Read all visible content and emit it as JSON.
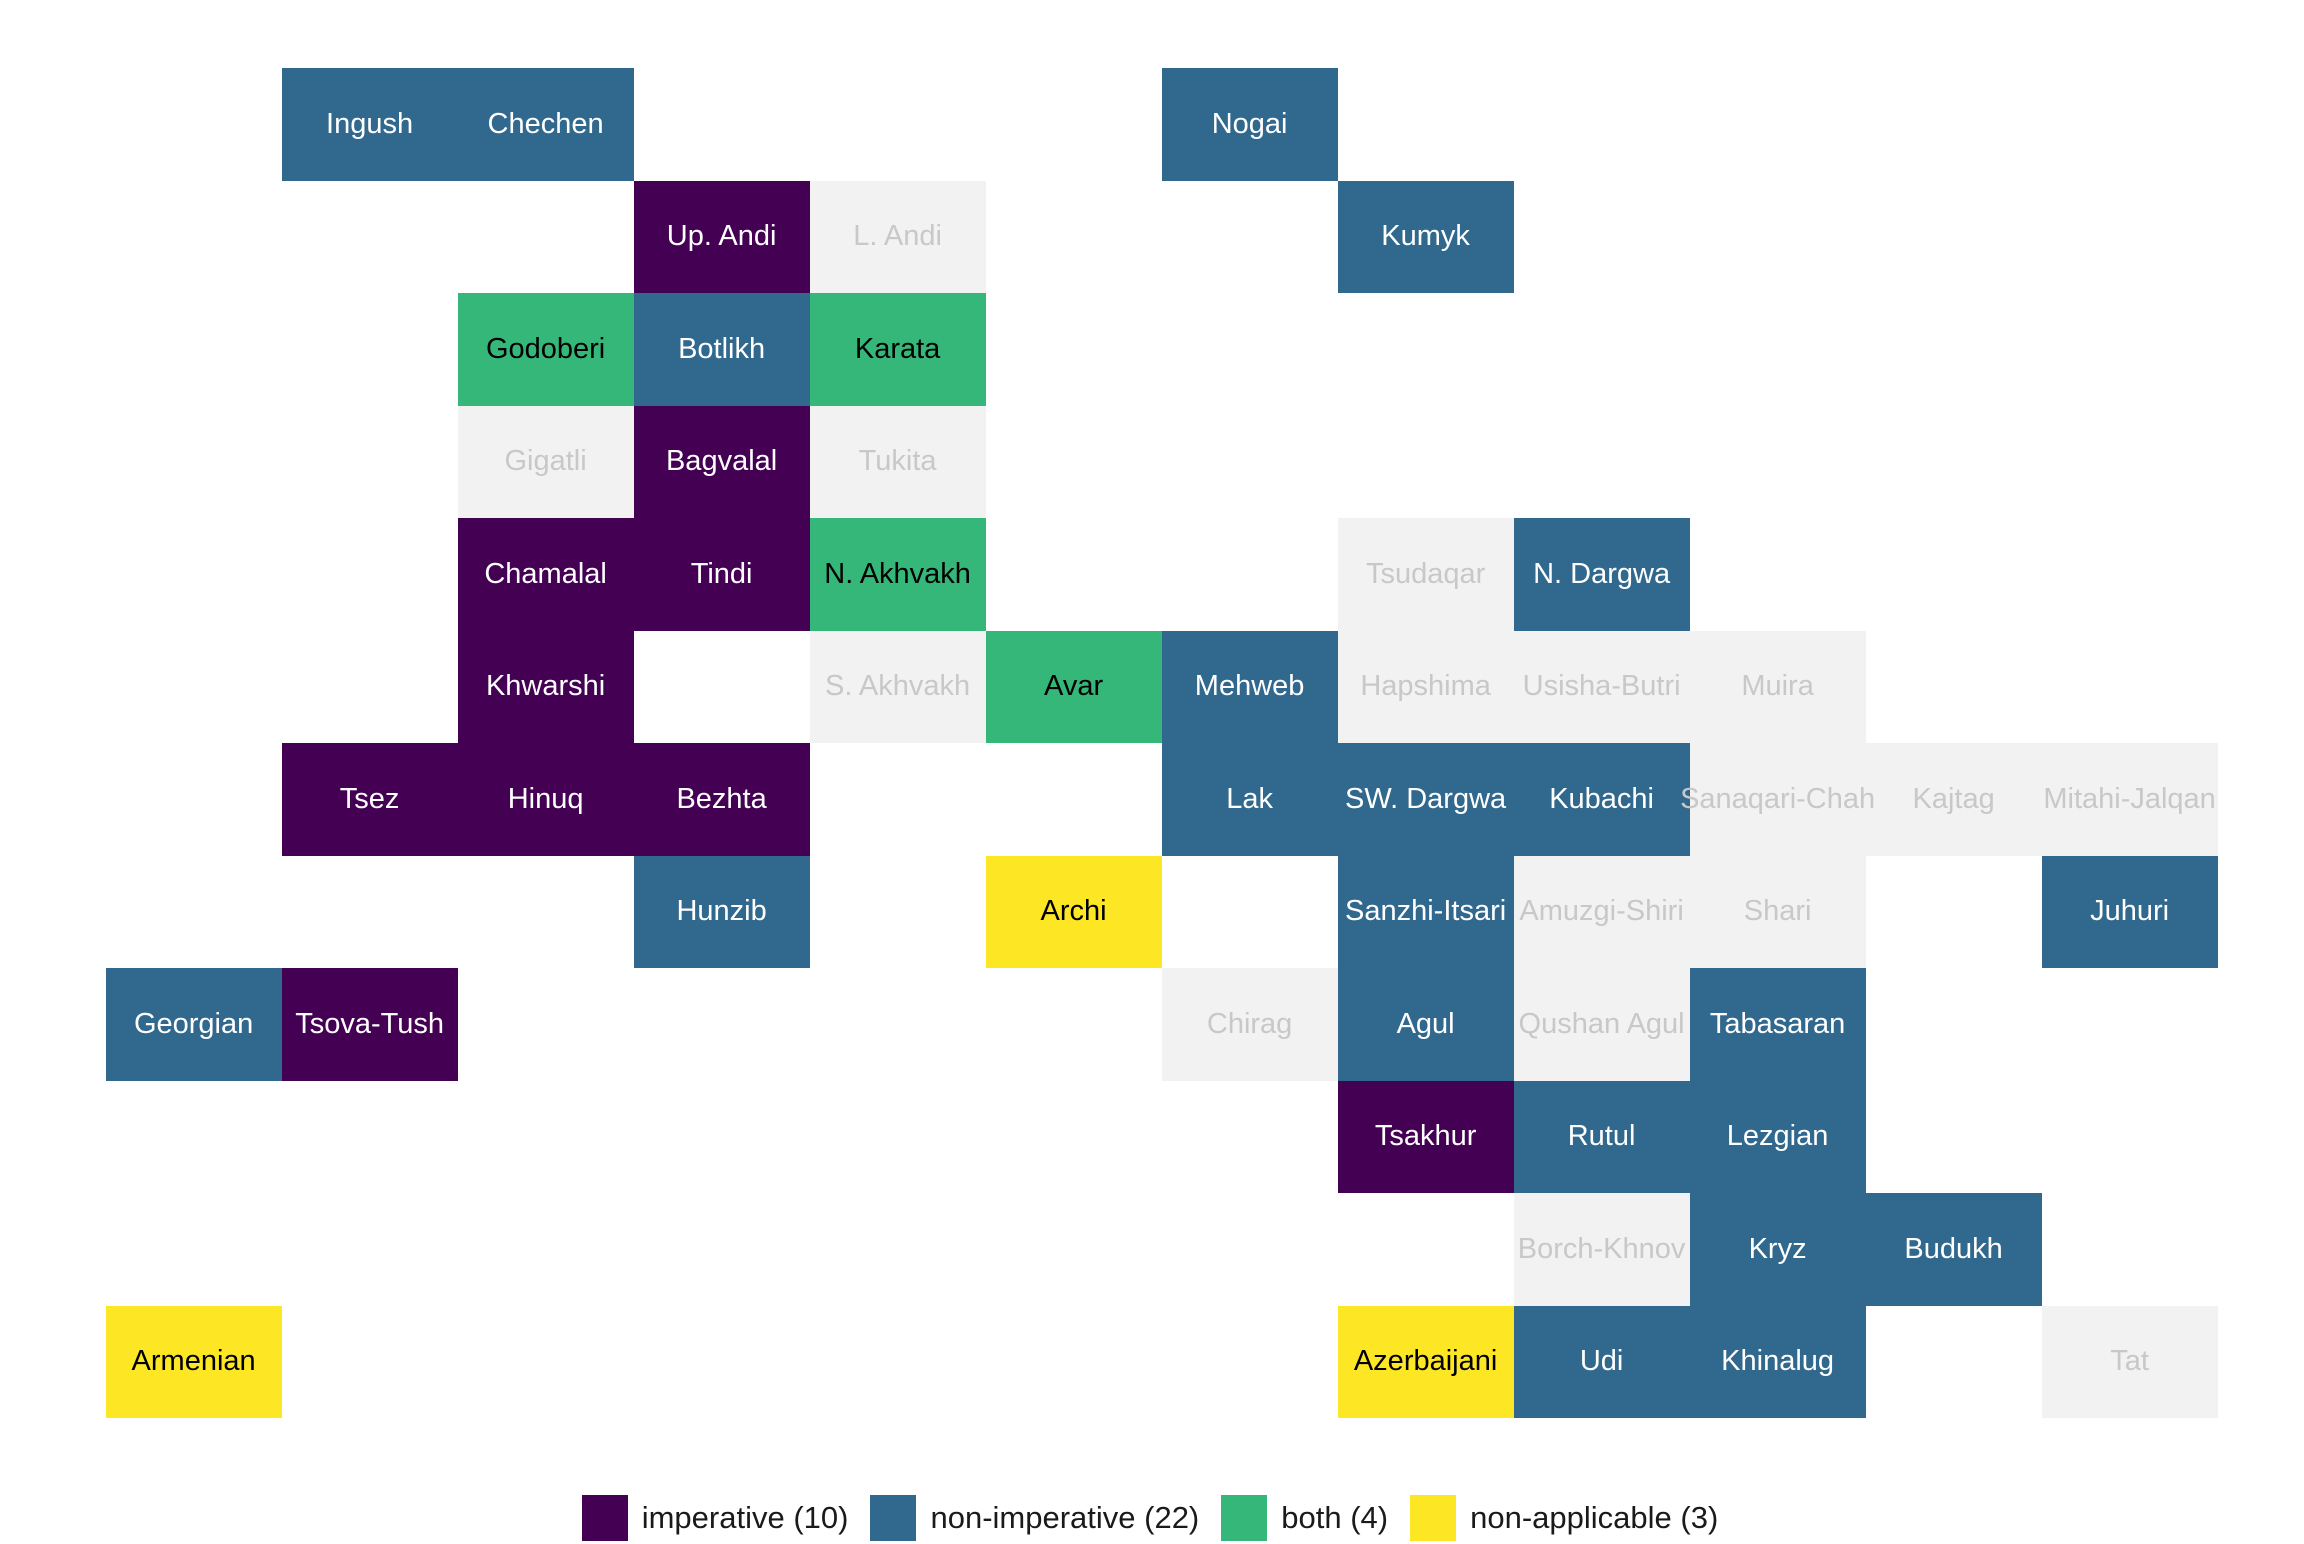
{
  "categories": {
    "imperative": {
      "label": "imperative (10)",
      "color": "#440154",
      "text_color": "#ffffff"
    },
    "non-imperative": {
      "label": "non-imperative (22)",
      "color": "#31688E",
      "text_color": "#ffffff"
    },
    "both": {
      "label": "both (4)",
      "color": "#35B779",
      "text_color": "#000000"
    },
    "non-applicable": {
      "label": "non-applicable (3)",
      "color": "#FDE725",
      "text_color": "#000000"
    },
    "none": {
      "label": "",
      "color": "#F2F2F2",
      "text_color": "#C8C8C8"
    }
  },
  "legend_order": [
    "imperative",
    "non-imperative",
    "both",
    "non-applicable"
  ],
  "tiles": [
    {
      "name": "Ingush",
      "col": 2,
      "row": 1,
      "cat": "non-imperative"
    },
    {
      "name": "Chechen",
      "col": 3,
      "row": 1,
      "cat": "non-imperative"
    },
    {
      "name": "Nogai",
      "col": 7,
      "row": 1,
      "cat": "non-imperative"
    },
    {
      "name": "Up. Andi",
      "col": 4,
      "row": 2,
      "cat": "imperative"
    },
    {
      "name": "L. Andi",
      "col": 5,
      "row": 2,
      "cat": "none"
    },
    {
      "name": "Kumyk",
      "col": 8,
      "row": 2,
      "cat": "non-imperative"
    },
    {
      "name": "Godoberi",
      "col": 3,
      "row": 3,
      "cat": "both"
    },
    {
      "name": "Botlikh",
      "col": 4,
      "row": 3,
      "cat": "non-imperative"
    },
    {
      "name": "Karata",
      "col": 5,
      "row": 3,
      "cat": "both"
    },
    {
      "name": "Gigatli",
      "col": 3,
      "row": 4,
      "cat": "none"
    },
    {
      "name": "Bagvalal",
      "col": 4,
      "row": 4,
      "cat": "imperative"
    },
    {
      "name": "Tukita",
      "col": 5,
      "row": 4,
      "cat": "none"
    },
    {
      "name": "Chamalal",
      "col": 3,
      "row": 5,
      "cat": "imperative"
    },
    {
      "name": "Tindi",
      "col": 4,
      "row": 5,
      "cat": "imperative"
    },
    {
      "name": "N. Akhvakh",
      "col": 5,
      "row": 5,
      "cat": "both"
    },
    {
      "name": "Tsudaqar",
      "col": 8,
      "row": 5,
      "cat": "none"
    },
    {
      "name": "N. Dargwa",
      "col": 9,
      "row": 5,
      "cat": "non-imperative"
    },
    {
      "name": "Khwarshi",
      "col": 3,
      "row": 6,
      "cat": "imperative"
    },
    {
      "name": "S. Akhvakh",
      "col": 5,
      "row": 6,
      "cat": "none"
    },
    {
      "name": "Avar",
      "col": 6,
      "row": 6,
      "cat": "both"
    },
    {
      "name": "Mehweb",
      "col": 7,
      "row": 6,
      "cat": "non-imperative"
    },
    {
      "name": "Hapshima",
      "col": 8,
      "row": 6,
      "cat": "none"
    },
    {
      "name": "Usisha-Butri",
      "col": 9,
      "row": 6,
      "cat": "none"
    },
    {
      "name": "Muira",
      "col": 10,
      "row": 6,
      "cat": "none"
    },
    {
      "name": "Tsez",
      "col": 2,
      "row": 7,
      "cat": "imperative"
    },
    {
      "name": "Hinuq",
      "col": 3,
      "row": 7,
      "cat": "imperative"
    },
    {
      "name": "Bezhta",
      "col": 4,
      "row": 7,
      "cat": "imperative"
    },
    {
      "name": "Lak",
      "col": 7,
      "row": 7,
      "cat": "non-imperative"
    },
    {
      "name": "SW. Dargwa",
      "col": 8,
      "row": 7,
      "cat": "non-imperative"
    },
    {
      "name": "Kubachi",
      "col": 9,
      "row": 7,
      "cat": "non-imperative"
    },
    {
      "name": "Sanaqari-Chah",
      "col": 10,
      "row": 7,
      "cat": "none"
    },
    {
      "name": "Kajtag",
      "col": 11,
      "row": 7,
      "cat": "none"
    },
    {
      "name": "Mitahi-Jalqan",
      "col": 12,
      "row": 7,
      "cat": "none"
    },
    {
      "name": "Hunzib",
      "col": 4,
      "row": 8,
      "cat": "non-imperative"
    },
    {
      "name": "Archi",
      "col": 6,
      "row": 8,
      "cat": "non-applicable"
    },
    {
      "name": "Sanzhi-Itsari",
      "col": 8,
      "row": 8,
      "cat": "non-imperative"
    },
    {
      "name": "Amuzgi-Shiri",
      "col": 9,
      "row": 8,
      "cat": "none"
    },
    {
      "name": "Shari",
      "col": 10,
      "row": 8,
      "cat": "none"
    },
    {
      "name": "Juhuri",
      "col": 12,
      "row": 8,
      "cat": "non-imperative"
    },
    {
      "name": "Georgian",
      "col": 1,
      "row": 9,
      "cat": "non-imperative"
    },
    {
      "name": "Tsova-Tush",
      "col": 2,
      "row": 9,
      "cat": "imperative"
    },
    {
      "name": "Chirag",
      "col": 7,
      "row": 9,
      "cat": "none"
    },
    {
      "name": "Agul",
      "col": 8,
      "row": 9,
      "cat": "non-imperative"
    },
    {
      "name": "Qushan Agul",
      "col": 9,
      "row": 9,
      "cat": "none"
    },
    {
      "name": "Tabasaran",
      "col": 10,
      "row": 9,
      "cat": "non-imperative"
    },
    {
      "name": "Tsakhur",
      "col": 8,
      "row": 10,
      "cat": "imperative"
    },
    {
      "name": "Rutul",
      "col": 9,
      "row": 10,
      "cat": "non-imperative"
    },
    {
      "name": "Lezgian",
      "col": 10,
      "row": 10,
      "cat": "non-imperative"
    },
    {
      "name": "Borch-Khnov",
      "col": 9,
      "row": 11,
      "cat": "none"
    },
    {
      "name": "Kryz",
      "col": 10,
      "row": 11,
      "cat": "non-imperative"
    },
    {
      "name": "Budukh",
      "col": 11,
      "row": 11,
      "cat": "non-imperative"
    },
    {
      "name": "Armenian",
      "col": 1,
      "row": 12,
      "cat": "non-applicable"
    },
    {
      "name": "Azerbaijani",
      "col": 8,
      "row": 12,
      "cat": "non-applicable"
    },
    {
      "name": "Udi",
      "col": 9,
      "row": 12,
      "cat": "non-imperative"
    },
    {
      "name": "Khinalug",
      "col": 10,
      "row": 12,
      "cat": "non-imperative"
    },
    {
      "name": "Tat",
      "col": 12,
      "row": 12,
      "cat": "none"
    }
  ]
}
